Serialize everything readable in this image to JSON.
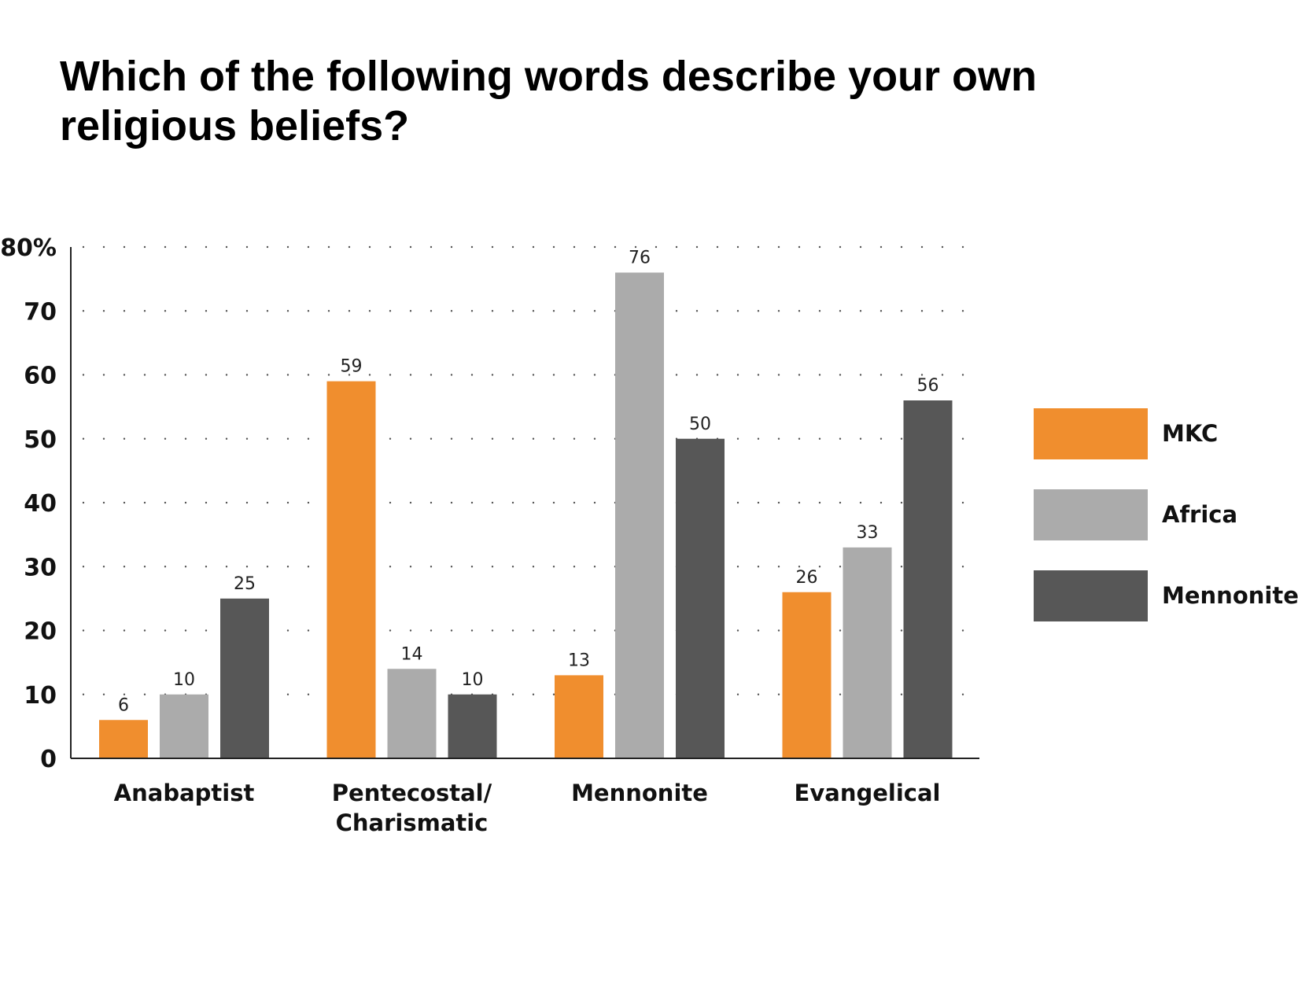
{
  "chart_data": {
    "type": "bar",
    "title": "Which of the following words describe your own religious beliefs?",
    "categories": [
      [
        "Anabaptist"
      ],
      [
        "Pentecostal/",
        "Charismatic"
      ],
      [
        "Mennonite"
      ],
      [
        "Evangelical"
      ]
    ],
    "series": [
      {
        "name": "MKC",
        "color": "#F08E2E",
        "values": [
          6,
          59,
          13,
          26
        ]
      },
      {
        "name": "Africa",
        "color": "#ABABAB",
        "values": [
          10,
          14,
          76,
          33
        ]
      },
      {
        "name": "Mennonite",
        "color": "#575757",
        "values": [
          25,
          10,
          50,
          56
        ]
      }
    ],
    "ylim": [
      0,
      80
    ],
    "yticks": [
      "0",
      "10",
      "20",
      "30",
      "40",
      "50",
      "60",
      "70",
      "80%"
    ],
    "grid": "dotted horizontal",
    "legend_position": "right"
  }
}
